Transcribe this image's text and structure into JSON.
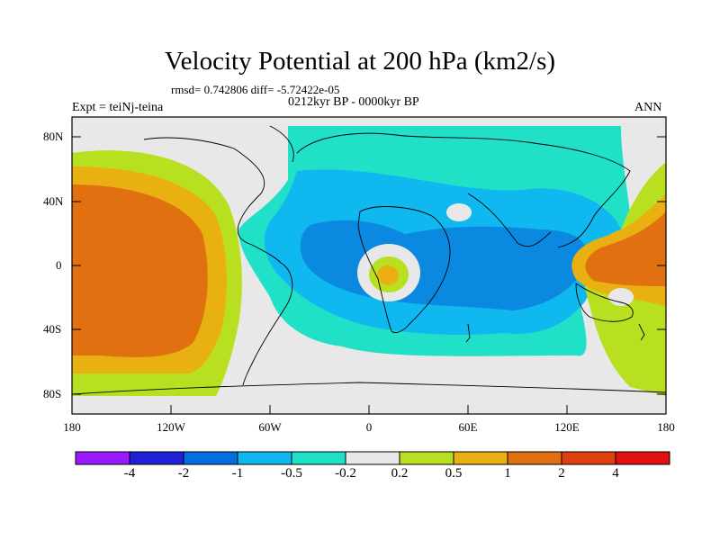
{
  "title": "Velocity Potential at 200 hPa (km2/s)",
  "stats_line": "rmsd= 0.742806 diff= -5.72422e-05",
  "experiment_label": "Expt = teiNj-teina",
  "period_label": "0212kyr BP - 0000kyr BP",
  "season_label": "ANN",
  "map": {
    "x_ticks": [
      "180",
      "120W",
      "60W",
      "0",
      "60E",
      "120E",
      "180"
    ],
    "y_ticks": [
      "80N",
      "40N",
      "0",
      "40S",
      "80S"
    ]
  },
  "colorbar": {
    "labels": [
      "-4",
      "-2",
      "-1",
      "-0.5",
      "-0.2",
      "0.2",
      "0.5",
      "1",
      "2",
      "4"
    ],
    "colors": [
      "#9a1aff",
      "#2020d8",
      "#0070e0",
      "#10b8f0",
      "#20e0c8",
      "#e8e8e8",
      "#b8e020",
      "#e8b010",
      "#e07010",
      "#e04010",
      "#e01010"
    ]
  },
  "field_colors": {
    "neg_mid": "#0b88e0",
    "neg_weak": "#10b8f0",
    "neg_faint": "#20e0c8",
    "neutral": "#e8e8e8",
    "pos_faint": "#b8e020",
    "pos_weak": "#e8b010",
    "pos_mid": "#e07010",
    "pos_strong": "#e04010"
  }
}
